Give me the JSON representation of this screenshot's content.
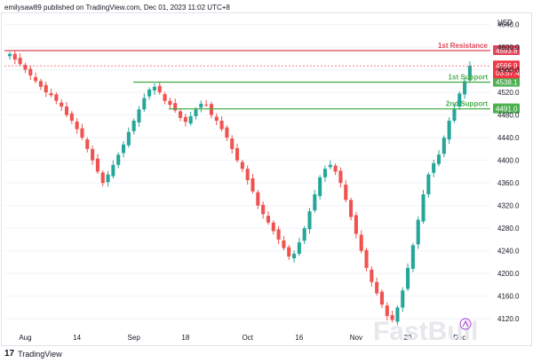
{
  "header": {
    "text": "emilysaw89 published on TradingView.com, Dec 01, 2023 11:02 UTC+8"
  },
  "footer": {
    "logo_glyph": "17",
    "label": "TradingView"
  },
  "watermark": "FastBull",
  "colors": {
    "up": "#26a69a",
    "down": "#ef5350",
    "resistance": "#e0475a",
    "support": "#4caf50",
    "last_price": "#f23645",
    "countdown_bg": "#f23645"
  },
  "chart_data": {
    "type": "candlestick",
    "currency": "USD",
    "y_ticks": [
      4120,
      4160,
      4200,
      4240,
      4280,
      4320,
      4360,
      4400,
      4440,
      4480,
      4520,
      4560,
      4600,
      4640
    ],
    "ylim": [
      4100,
      4655
    ],
    "x_tick_labels": [
      "Aug",
      "14",
      "Sep",
      "18",
      "Oct",
      "16",
      "Nov",
      "20",
      "Dec"
    ],
    "x_tick_indices": [
      3,
      13,
      24,
      34,
      46,
      56,
      67,
      77,
      87
    ],
    "num_bars": 90,
    "closes": [
      4588,
      4578,
      4570,
      4560,
      4550,
      4540,
      4530,
      4520,
      4515,
      4505,
      4495,
      4480,
      4470,
      4455,
      4440,
      4420,
      4400,
      4380,
      4360,
      4375,
      4392,
      4410,
      4428,
      4450,
      4470,
      4490,
      4510,
      4525,
      4530,
      4520,
      4505,
      4498,
      4488,
      4475,
      4468,
      4478,
      4490,
      4500,
      4498,
      4480,
      4470,
      4455,
      4440,
      4420,
      4400,
      4385,
      4365,
      4345,
      4320,
      4305,
      4290,
      4275,
      4260,
      4245,
      4230,
      4235,
      4255,
      4280,
      4310,
      4340,
      4370,
      4385,
      4392,
      4380,
      4360,
      4330,
      4300,
      4270,
      4240,
      4210,
      4185,
      4165,
      4145,
      4125,
      4118,
      4140,
      4170,
      4210,
      4250,
      4295,
      4340,
      4375,
      4395,
      4410,
      4440,
      4470,
      4492,
      4518,
      4540,
      4566.9
    ],
    "annotations": [
      {
        "label": "1st Resistance",
        "value": 4593.8,
        "value_label": "4593.8",
        "type": "resistance"
      },
      {
        "label": "1st Support",
        "value": 4538.1,
        "value_label": "4538.1",
        "type": "support"
      },
      {
        "label": "2nd Support",
        "value": 4491.0,
        "value_label": "4491.0",
        "type": "support"
      }
    ],
    "last_price": {
      "value": 4566.9,
      "value_label": "4566.9",
      "countdown": "03:57:47"
    }
  }
}
